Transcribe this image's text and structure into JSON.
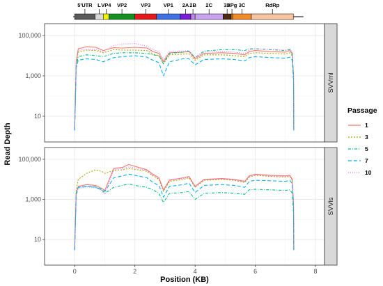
{
  "chart_data": {
    "type": "line",
    "xlabel": "Position (KB)",
    "ylabel": "Read Depth",
    "xlim": [
      -1,
      8.3
    ],
    "x_ticks": [
      0,
      2,
      4,
      6,
      8
    ],
    "x_tick_labels": [
      "0",
      "2",
      "4",
      "6",
      "8"
    ],
    "y_scale": "log",
    "y_ticks": [
      10,
      1000,
      100000
    ],
    "y_tick_labels": [
      "10",
      "1,000",
      "100,000"
    ],
    "legend": {
      "title": "Passage",
      "position": "right",
      "entries": [
        {
          "label": "1",
          "color": "#F8766D",
          "dash": ""
        },
        {
          "label": "3",
          "color": "#A3A500",
          "dash": "2,2"
        },
        {
          "label": "5",
          "color": "#00BF7D",
          "dash": "4,2,1,2"
        },
        {
          "label": "7",
          "color": "#00B0F6",
          "dash": "5,3"
        },
        {
          "label": "10",
          "color": "#E76BF3",
          "dash": "1,2"
        }
      ]
    },
    "genome_map": {
      "segments": [
        {
          "label": "5'UTR",
          "start": 0.0,
          "end": 0.68,
          "color": "#595959"
        },
        {
          "label": "L",
          "start": 0.68,
          "end": 0.95,
          "color": "#d9d9d9"
        },
        {
          "label": "VP4",
          "start": 0.95,
          "end": 1.14,
          "color": "#f2f20a"
        },
        {
          "label": "VP2",
          "start": 1.14,
          "end": 2.0,
          "color": "#14911e"
        },
        {
          "label": "VP3",
          "start": 2.0,
          "end": 2.72,
          "color": "#e31a1c"
        },
        {
          "label": "VP1",
          "start": 2.72,
          "end": 3.51,
          "color": "#3f6fe0"
        },
        {
          "label": "2A",
          "start": 3.51,
          "end": 3.86,
          "color": "#7a1fd6"
        },
        {
          "label": "2B",
          "start": 3.86,
          "end": 4.0,
          "color": "#b98be8"
        },
        {
          "label": "2C",
          "start": 4.0,
          "end": 4.93,
          "color": "#c9a3ef"
        },
        {
          "label": "3A",
          "start": 4.93,
          "end": 5.2,
          "color": "#4a2a16"
        },
        {
          "label": "VPg",
          "start": 5.2,
          "end": 5.25,
          "color": "#e87f1a"
        },
        {
          "label": "3C",
          "start": 5.25,
          "end": 5.87,
          "color": "#f08a2a"
        },
        {
          "label": "RdRp",
          "start": 5.87,
          "end": 7.27,
          "color": "#f6c49e"
        }
      ]
    },
    "panels": [
      {
        "name": "SVVml",
        "series": [
          {
            "name": "1",
            "x": [
              0,
              0.05,
              0.12,
              0.4,
              0.7,
              0.95,
              1.3,
              1.6,
              2.0,
              2.4,
              2.6,
              2.8,
              2.95,
              3.15,
              3.6,
              3.8,
              4.0,
              4.3,
              4.9,
              5.3,
              5.65,
              5.8,
              6.0,
              6.5,
              7.0,
              7.15,
              7.23,
              7.27,
              7.28
            ],
            "y": [
              2,
              5000,
              22000,
              28000,
              26000,
              18000,
              25000,
              24000,
              26000,
              24000,
              16000,
              13000,
              5000,
              14000,
              15000,
              16000,
              7000,
              13000,
              14000,
              13000,
              11000,
              16000,
              18000,
              16000,
              15000,
              18000,
              12000,
              1000,
              2
            ]
          },
          {
            "name": "3",
            "x": [
              0,
              0.05,
              0.12,
              0.4,
              0.7,
              0.95,
              1.3,
              1.6,
              2.0,
              2.4,
              2.6,
              2.8,
              2.95,
              3.15,
              3.6,
              3.8,
              4.0,
              4.3,
              4.9,
              5.3,
              5.65,
              5.8,
              6.0,
              6.5,
              7.0,
              7.15,
              7.23,
              7.27,
              7.28
            ],
            "y": [
              2,
              4000,
              15000,
              19000,
              18000,
              14000,
              20000,
              19000,
              19000,
              18000,
              12000,
              10000,
              4000,
              11000,
              12000,
              12000,
              6000,
              11000,
              11000,
              10000,
              9000,
              13000,
              14000,
              13000,
              12000,
              14000,
              10000,
              900,
              2
            ]
          },
          {
            "name": "5",
            "x": [
              0,
              0.05,
              0.12,
              0.4,
              0.7,
              0.95,
              1.3,
              1.6,
              2.0,
              2.4,
              2.6,
              2.8,
              2.95,
              3.15,
              3.6,
              3.8,
              4.0,
              4.3,
              4.9,
              5.3,
              5.65,
              5.8,
              6.0,
              6.5,
              7.0,
              7.15,
              7.23,
              7.27,
              7.28
            ],
            "y": [
              2,
              3000,
              9000,
              11000,
              10000,
              9000,
              13000,
              14000,
              14000,
              13000,
              11000,
              10000,
              4000,
              13000,
              15000,
              17000,
              8000,
              17000,
              20000,
              20000,
              18000,
              22000,
              22000,
              20000,
              18000,
              20000,
              13000,
              1000,
              2
            ]
          },
          {
            "name": "7",
            "x": [
              0,
              0.05,
              0.12,
              0.4,
              0.7,
              0.95,
              1.3,
              1.6,
              2.0,
              2.4,
              2.6,
              2.8,
              2.95,
              3.15,
              3.6,
              3.8,
              4.0,
              4.3,
              4.9,
              5.3,
              5.65,
              5.8,
              6.0,
              6.5,
              7.0,
              7.15,
              7.23,
              7.27,
              7.28
            ],
            "y": [
              2,
              2500,
              6000,
              7000,
              6500,
              5000,
              8000,
              9000,
              10000,
              8500,
              6000,
              4500,
              1000,
              5000,
              7000,
              7000,
              3500,
              6500,
              7000,
              6500,
              5500,
              8000,
              9000,
              8000,
              7500,
              8500,
              6000,
              600,
              2
            ]
          },
          {
            "name": "10",
            "x": [
              0,
              0.05,
              0.12,
              0.4,
              0.7,
              0.95,
              1.3,
              1.6,
              2.0,
              2.4,
              2.6,
              2.8,
              2.95,
              3.15,
              3.6,
              3.8,
              4.0,
              4.3,
              4.9,
              5.3,
              5.65,
              5.8,
              6.0,
              6.5,
              7.0,
              7.15,
              7.23,
              7.27,
              7.28
            ],
            "y": [
              2,
              4500,
              18000,
              21000,
              20000,
              16000,
              32000,
              38000,
              40000,
              30000,
              20000,
              16000,
              6000,
              16000,
              17000,
              18000,
              8000,
              15000,
              16000,
              15000,
              13000,
              19000,
              22000,
              20000,
              19000,
              22000,
              14000,
              1100,
              2
            ]
          }
        ]
      },
      {
        "name": "SVVls",
        "series": [
          {
            "name": "1",
            "x": [
              0,
              0.05,
              0.12,
              0.4,
              0.7,
              0.9,
              1.0,
              1.3,
              1.6,
              1.8,
              2.0,
              2.4,
              2.6,
              2.8,
              2.95,
              3.15,
              3.6,
              3.8,
              4.0,
              4.3,
              4.9,
              5.3,
              5.65,
              5.8,
              6.0,
              6.5,
              7.0,
              7.15,
              7.23,
              7.27,
              7.28
            ],
            "y": [
              3,
              2000,
              4500,
              5500,
              5000,
              3500,
              2800,
              35000,
              40000,
              55000,
              45000,
              30000,
              18000,
              12000,
              3000,
              9000,
              12000,
              14000,
              4500,
              10000,
              11000,
              10000,
              8000,
              15000,
              18000,
              16000,
              15000,
              16000,
              10000,
              600,
              3
            ]
          },
          {
            "name": "3",
            "x": [
              0,
              0.05,
              0.12,
              0.4,
              0.7,
              0.9,
              1.0,
              1.3,
              1.6,
              1.8,
              2.0,
              2.4,
              2.6,
              2.8,
              2.95,
              3.15,
              3.6,
              3.8,
              4.0,
              4.3,
              4.9,
              5.3,
              5.65,
              5.8,
              6.0,
              6.5,
              7.0,
              7.15,
              7.23,
              7.27,
              7.28
            ],
            "y": [
              3,
              3000,
              10000,
              20000,
              30000,
              25000,
              20000,
              28000,
              30000,
              35000,
              32000,
              25000,
              15000,
              10000,
              2500,
              8000,
              10000,
              12000,
              4000,
              9000,
              10000,
              9000,
              7000,
              13000,
              16000,
              14000,
              13000,
              14000,
              9000,
              550,
              3
            ]
          },
          {
            "name": "5",
            "x": [
              0,
              0.05,
              0.12,
              0.4,
              0.7,
              0.9,
              1.0,
              1.3,
              1.6,
              1.8,
              2.0,
              2.4,
              2.6,
              2.8,
              2.95,
              3.15,
              3.6,
              3.8,
              4.0,
              4.3,
              4.9,
              5.3,
              5.65,
              5.8,
              6.0,
              6.5,
              7.0,
              7.15,
              7.23,
              7.27,
              7.28
            ],
            "y": [
              3,
              1500,
              4000,
              4500,
              4000,
              3000,
              2000,
              4000,
              5000,
              6000,
              5000,
              4000,
              3000,
              2000,
              700,
              2000,
              2200,
              2500,
              1000,
              2000,
              2200,
              2000,
              1800,
              3000,
              3200,
              3000,
              2800,
              3000,
              2000,
              200,
              3
            ]
          },
          {
            "name": "7",
            "x": [
              0,
              0.05,
              0.12,
              0.4,
              0.7,
              0.9,
              1.0,
              1.3,
              1.6,
              1.8,
              2.0,
              2.4,
              2.6,
              2.8,
              2.95,
              3.15,
              3.6,
              3.8,
              4.0,
              4.3,
              4.9,
              5.3,
              5.65,
              5.8,
              6.0,
              6.5,
              7.0,
              7.15,
              7.23,
              7.27,
              7.28
            ],
            "y": [
              3,
              2000,
              4000,
              4500,
              4200,
              3200,
              2500,
              12000,
              15000,
              18000,
              16000,
              12000,
              7000,
              5000,
              1300,
              4500,
              5500,
              6500,
              2200,
              5000,
              5500,
              5000,
              4000,
              8000,
              9000,
              8500,
              8000,
              9000,
              6000,
              450,
              3
            ]
          },
          {
            "name": "10",
            "x": [
              0,
              0.05,
              0.12,
              0.4,
              0.7,
              0.9,
              1.0,
              1.3,
              1.6,
              1.8,
              2.0,
              2.4,
              2.6,
              2.8,
              2.95,
              3.15,
              3.6,
              3.8,
              4.0,
              4.3,
              4.9,
              5.3,
              5.65,
              5.8,
              6.0,
              6.5,
              7.0,
              7.15,
              7.23,
              7.27,
              7.28
            ],
            "y": [
              3,
              1800,
              3500,
              4200,
              3800,
              2800,
              1800,
              30000,
              35000,
              42000,
              38000,
              28000,
              16000,
              11000,
              2800,
              10000,
              11000,
              13000,
              4200,
              9500,
              10500,
              9500,
              7500,
              14000,
              17000,
              15000,
              14000,
              15000,
              9500,
              580,
              3
            ]
          }
        ]
      }
    ]
  }
}
